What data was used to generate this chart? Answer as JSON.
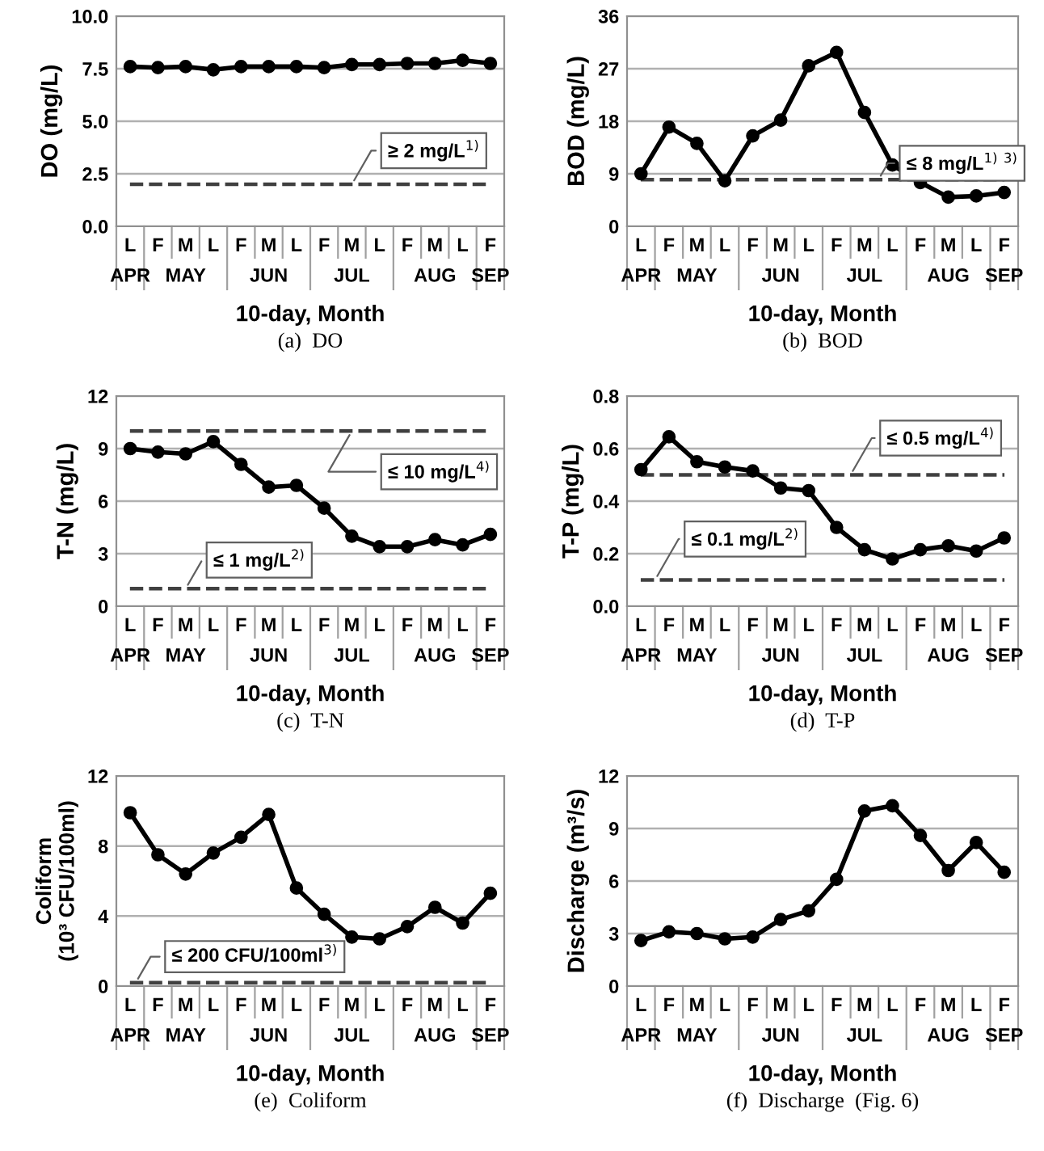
{
  "chart_data": [
    {
      "type": "line",
      "title": "(a)  DO",
      "xlabel": "10-day, Month",
      "ylabel": "DO (mg/L)",
      "categories": [
        "L",
        "F",
        "M",
        "L",
        "F",
        "M",
        "L",
        "F",
        "M",
        "L",
        "F",
        "M",
        "L",
        "F"
      ],
      "annotations": [
        "APR",
        "MAY",
        "JUN",
        "JUL",
        "AUG",
        "SEP"
      ],
      "series": [
        {
          "color": "#000000",
          "values": [
            7.6,
            7.55,
            7.6,
            7.45,
            7.6,
            7.6,
            7.6,
            7.55,
            7.7,
            7.7,
            7.75,
            7.75,
            7.9,
            7.75
          ]
        }
      ],
      "ylim": [
        0,
        10
      ],
      "yticks": [
        {
          "value": 0,
          "label": "0.0"
        },
        {
          "value": 2.5,
          "label": "2.5"
        },
        {
          "value": 5,
          "label": "5.0"
        },
        {
          "value": 7.5,
          "label": "7.5"
        },
        {
          "value": 10,
          "label": "10.0"
        }
      ],
      "ref_lines": [
        {
          "axis": "y",
          "value": 2,
          "label": "≥ 2 mg/L$^{1)}$",
          "color": "#404040",
          "line_style": "dashed"
        }
      ],
      "grid": "y",
      "marker": "circle",
      "line_style": "solid",
      "legend": false
    },
    {
      "type": "line",
      "title": "(b)  BOD",
      "xlabel": "10-day, Month",
      "ylabel": "BOD (mg/L)",
      "categories": [
        "L",
        "F",
        "M",
        "L",
        "F",
        "M",
        "L",
        "F",
        "M",
        "L",
        "F",
        "M",
        "L",
        "F"
      ],
      "annotations": [
        "APR",
        "MAY",
        "JUN",
        "JUL",
        "AUG",
        "SEP"
      ],
      "series": [
        {
          "color": "#000000",
          "values": [
            9,
            17,
            14.2,
            7.8,
            15.5,
            18.2,
            27.5,
            29.8,
            19.5,
            10.5,
            7.5,
            5,
            5.2,
            5.8
          ]
        }
      ],
      "ylim": [
        0,
        36
      ],
      "yticks": [
        0,
        9,
        18,
        27,
        36
      ],
      "ref_lines": [
        {
          "axis": "y",
          "value": 8,
          "label": "≤ 8 mg/L$^{1)}$ $^{3)}$",
          "color": "#404040",
          "line_style": "dashed"
        }
      ],
      "grid": "y",
      "marker": "circle",
      "line_style": "solid",
      "legend": false
    },
    {
      "type": "line",
      "title": "(c)  T-N",
      "xlabel": "10-day, Month",
      "ylabel": "T-N (mg/L)",
      "categories": [
        "L",
        "F",
        "M",
        "L",
        "F",
        "M",
        "L",
        "F",
        "M",
        "L",
        "F",
        "M",
        "L",
        "F"
      ],
      "annotations": [
        "APR",
        "MAY",
        "JUN",
        "JUL",
        "AUG",
        "SEP"
      ],
      "series": [
        {
          "color": "#000000",
          "values": [
            9.0,
            8.8,
            8.7,
            9.4,
            8.1,
            6.8,
            6.9,
            5.6,
            4.0,
            3.4,
            3.4,
            3.8,
            3.5,
            4.1
          ]
        }
      ],
      "ylim": [
        0,
        12
      ],
      "yticks": [
        0,
        3,
        6,
        9,
        12
      ],
      "ref_lines": [
        {
          "axis": "y",
          "value": 10,
          "label": "≤ 10 mg/L$^{4)}$",
          "color": "#404040",
          "line_style": "dashed"
        },
        {
          "axis": "y",
          "value": 1,
          "label": "≤ 1 mg/L$^{2)}$",
          "color": "#404040",
          "line_style": "dashed"
        }
      ],
      "grid": "y",
      "marker": "circle",
      "line_style": "solid",
      "legend": false
    },
    {
      "type": "line",
      "title": "(d)  T-P",
      "xlabel": "10-day, Month",
      "ylabel": "T-P (mg/L)",
      "categories": [
        "L",
        "F",
        "M",
        "L",
        "F",
        "M",
        "L",
        "F",
        "M",
        "L",
        "F",
        "M",
        "L",
        "F"
      ],
      "annotations": [
        "APR",
        "MAY",
        "JUN",
        "JUL",
        "AUG",
        "SEP"
      ],
      "series": [
        {
          "color": "#000000",
          "values": [
            0.52,
            0.645,
            0.55,
            0.53,
            0.515,
            0.45,
            0.44,
            0.3,
            0.215,
            0.18,
            0.215,
            0.23,
            0.21,
            0.26
          ]
        }
      ],
      "ylim": [
        0,
        0.8
      ],
      "yticks": [
        {
          "value": 0,
          "label": "0.0"
        },
        0.2,
        0.4,
        0.6,
        0.8
      ],
      "ref_lines": [
        {
          "axis": "y",
          "value": 0.5,
          "label": "≤ 0.5 mg/L$^{4)}$",
          "color": "#404040",
          "line_style": "dashed"
        },
        {
          "axis": "y",
          "value": 0.1,
          "label": "≤ 0.1 mg/L$^{2)}$",
          "color": "#404040",
          "line_style": "dashed"
        }
      ],
      "grid": "y",
      "marker": "circle",
      "line_style": "solid",
      "legend": false
    },
    {
      "type": "line",
      "title": "(e)  Coliform",
      "xlabel": "10-day, Month",
      "ylabel": "Coliform\n(10³ CFU/100ml)",
      "categories": [
        "L",
        "F",
        "M",
        "L",
        "F",
        "M",
        "L",
        "F",
        "M",
        "L",
        "F",
        "M",
        "L",
        "F"
      ],
      "annotations": [
        "APR",
        "MAY",
        "JUN",
        "JUL",
        "AUG",
        "SEP"
      ],
      "series": [
        {
          "color": "#000000",
          "values": [
            9.9,
            7.5,
            6.4,
            7.6,
            8.5,
            9.8,
            5.6,
            4.1,
            2.8,
            2.7,
            3.4,
            4.5,
            3.6,
            5.3
          ]
        }
      ],
      "ylim": [
        0,
        12
      ],
      "yticks": [
        0,
        4,
        8,
        12
      ],
      "ref_lines": [
        {
          "axis": "y",
          "value": 0.2,
          "label": "≤ 200 CFU/100ml$^{3)}$",
          "color": "#404040",
          "line_style": "dashed"
        }
      ],
      "grid": "y",
      "marker": "circle",
      "line_style": "solid",
      "legend": false
    },
    {
      "type": "line",
      "title": "(f)  Discharge  (Fig. 6)",
      "xlabel": "10-day, Month",
      "ylabel": "Discharge (m³/s)",
      "categories": [
        "L",
        "F",
        "M",
        "L",
        "F",
        "M",
        "L",
        "F",
        "M",
        "L",
        "F",
        "M",
        "L",
        "F"
      ],
      "annotations": [
        "APR",
        "MAY",
        "JUN",
        "JUL",
        "AUG",
        "SEP"
      ],
      "series": [
        {
          "color": "#000000",
          "values": [
            2.6,
            3.1,
            3.0,
            2.7,
            2.8,
            3.8,
            4.3,
            6.1,
            10.0,
            10.3,
            8.6,
            6.6,
            8.2,
            6.5
          ]
        }
      ],
      "ylim": [
        0,
        12
      ],
      "yticks": [
        0,
        3,
        6,
        9,
        12
      ],
      "grid": "y",
      "marker": "circle",
      "line_style": "solid",
      "legend": false
    }
  ]
}
